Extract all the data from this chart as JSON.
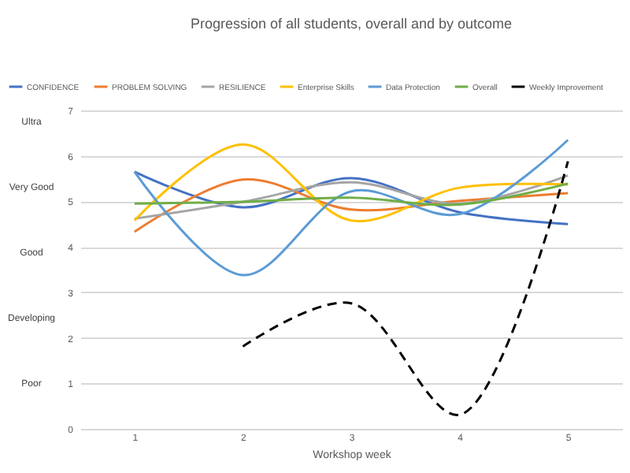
{
  "chart_data": {
    "type": "line",
    "title": "Progression of all students, overall and by outcome",
    "xlabel": "Workshop week",
    "categories": [
      "1",
      "2",
      "3",
      "4",
      "5"
    ],
    "series": [
      {
        "name": "CONFIDENCE",
        "color": "#4472c4",
        "values": [
          5.65,
          4.87,
          5.51,
          4.76,
          4.5
        ]
      },
      {
        "name": "PROBLEM SOLVING",
        "color": "#ed7d31",
        "values": [
          4.33,
          5.48,
          4.82,
          5.01,
          5.18
        ]
      },
      {
        "name": "RESILIENCE",
        "color": "#a5a5a5",
        "values": [
          4.62,
          4.99,
          5.42,
          4.95,
          5.57
        ]
      },
      {
        "name": "Enterprise Skills",
        "color": "#ffc000",
        "values": [
          4.58,
          6.25,
          4.58,
          5.3,
          5.37
        ]
      },
      {
        "name": "Data Protection",
        "color": "#5b9bd5",
        "values": [
          5.65,
          3.38,
          5.22,
          4.72,
          6.35
        ]
      },
      {
        "name": "Overall",
        "color": "#70ad47",
        "values": [
          4.95,
          4.99,
          5.08,
          4.93,
          5.39
        ]
      },
      {
        "name": "Weekly Improvement",
        "color": "#000000",
        "line_style": "dashed",
        "values": [
          null,
          1.81,
          2.76,
          0.31,
          5.88
        ]
      }
    ],
    "ylim": [
      0,
      7
    ],
    "yticks": [
      0,
      1,
      2,
      3,
      4,
      5,
      6,
      7
    ],
    "grid": "y",
    "legend": "top",
    "marker": "none",
    "annotations": [
      "Ultra",
      "Very Good",
      "Good",
      "Developing",
      "Poor"
    ]
  }
}
